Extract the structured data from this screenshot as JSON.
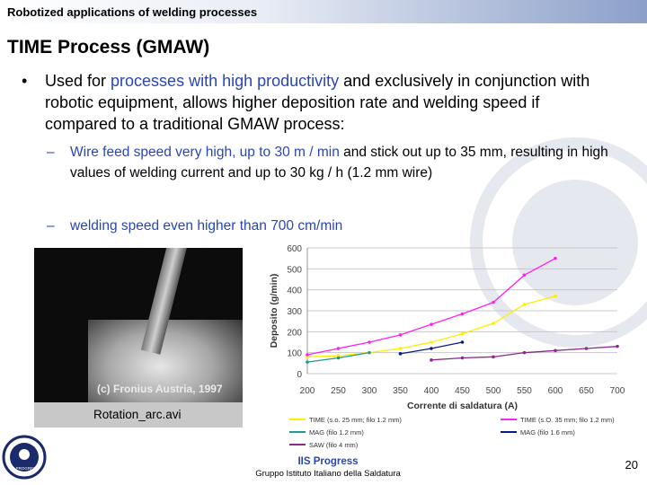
{
  "header": {
    "title": "Robotized applications of welding processes"
  },
  "slide": {
    "title": "TIME Process (GMAW)",
    "bullet": {
      "prefix": "Used for ",
      "highlight": "processes with high productivity",
      "rest": " and exclusively in conjunction with robotic equipment, allows higher deposition rate and welding speed if compared to a traditional GMAW process:"
    },
    "sub_items": [
      {
        "highlight": "Wire feed speed very high, up to 30 m / min",
        "rest": " and stick out up to 35 mm, resulting in high values of welding current and up to 30 kg / h (1.2 mm wire)"
      },
      {
        "highlight": "welding speed even higher than 700 cm/min",
        "rest": ""
      }
    ]
  },
  "video": {
    "copyright": "(c) Fronius Austria, 1997",
    "caption": "Rotation_arc.avi"
  },
  "chart_data": {
    "type": "line",
    "xlabel": "Corrente di saldatura (A)",
    "ylabel": "Deposito (g/min)",
    "xlim": [
      200,
      700
    ],
    "ylim": [
      0,
      600
    ],
    "x_ticks": [
      200,
      250,
      300,
      350,
      400,
      450,
      500,
      550,
      600,
      650,
      700
    ],
    "y_ticks": [
      0,
      100,
      200,
      300,
      400,
      500,
      600
    ],
    "grid": true,
    "legend_position": "bottom",
    "series": [
      {
        "name": "TIME (s.o. 25 mm; filo 1.2 mm)",
        "color": "#ffee00",
        "points": [
          [
            200,
            80
          ],
          [
            250,
            85
          ],
          [
            300,
            100
          ],
          [
            350,
            120
          ],
          [
            400,
            150
          ],
          [
            450,
            190
          ],
          [
            500,
            240
          ],
          [
            550,
            330
          ],
          [
            600,
            370
          ]
        ]
      },
      {
        "name": "TIME (s.O. 35 mm; filo 1.2 mm)",
        "color": "#ff22ee",
        "points": [
          [
            200,
            90
          ],
          [
            250,
            120
          ],
          [
            300,
            150
          ],
          [
            350,
            185
          ],
          [
            400,
            235
          ],
          [
            450,
            285
          ],
          [
            500,
            340
          ],
          [
            550,
            470
          ],
          [
            600,
            550
          ]
        ]
      },
      {
        "name": "MAG (filo 1.2 mm)",
        "color": "#1f9a8a",
        "points": [
          [
            200,
            55
          ],
          [
            250,
            75
          ],
          [
            300,
            100
          ]
        ]
      },
      {
        "name": "MAG (filo 1.6 mm)",
        "color": "#0b1a80",
        "points": [
          [
            350,
            95
          ],
          [
            400,
            120
          ],
          [
            450,
            150
          ]
        ]
      },
      {
        "name": "SAW (filo 4 mm)",
        "color": "#8a2a8a",
        "points": [
          [
            400,
            65
          ],
          [
            450,
            75
          ],
          [
            500,
            80
          ],
          [
            550,
            100
          ],
          [
            600,
            110
          ],
          [
            650,
            120
          ],
          [
            700,
            130
          ]
        ]
      }
    ]
  },
  "footer": {
    "org": "IIS Progress",
    "sub": "Gruppo Istituto Italiano della Saldatura",
    "page": "20"
  },
  "logo": {
    "text": "IIS PROGRESS"
  }
}
